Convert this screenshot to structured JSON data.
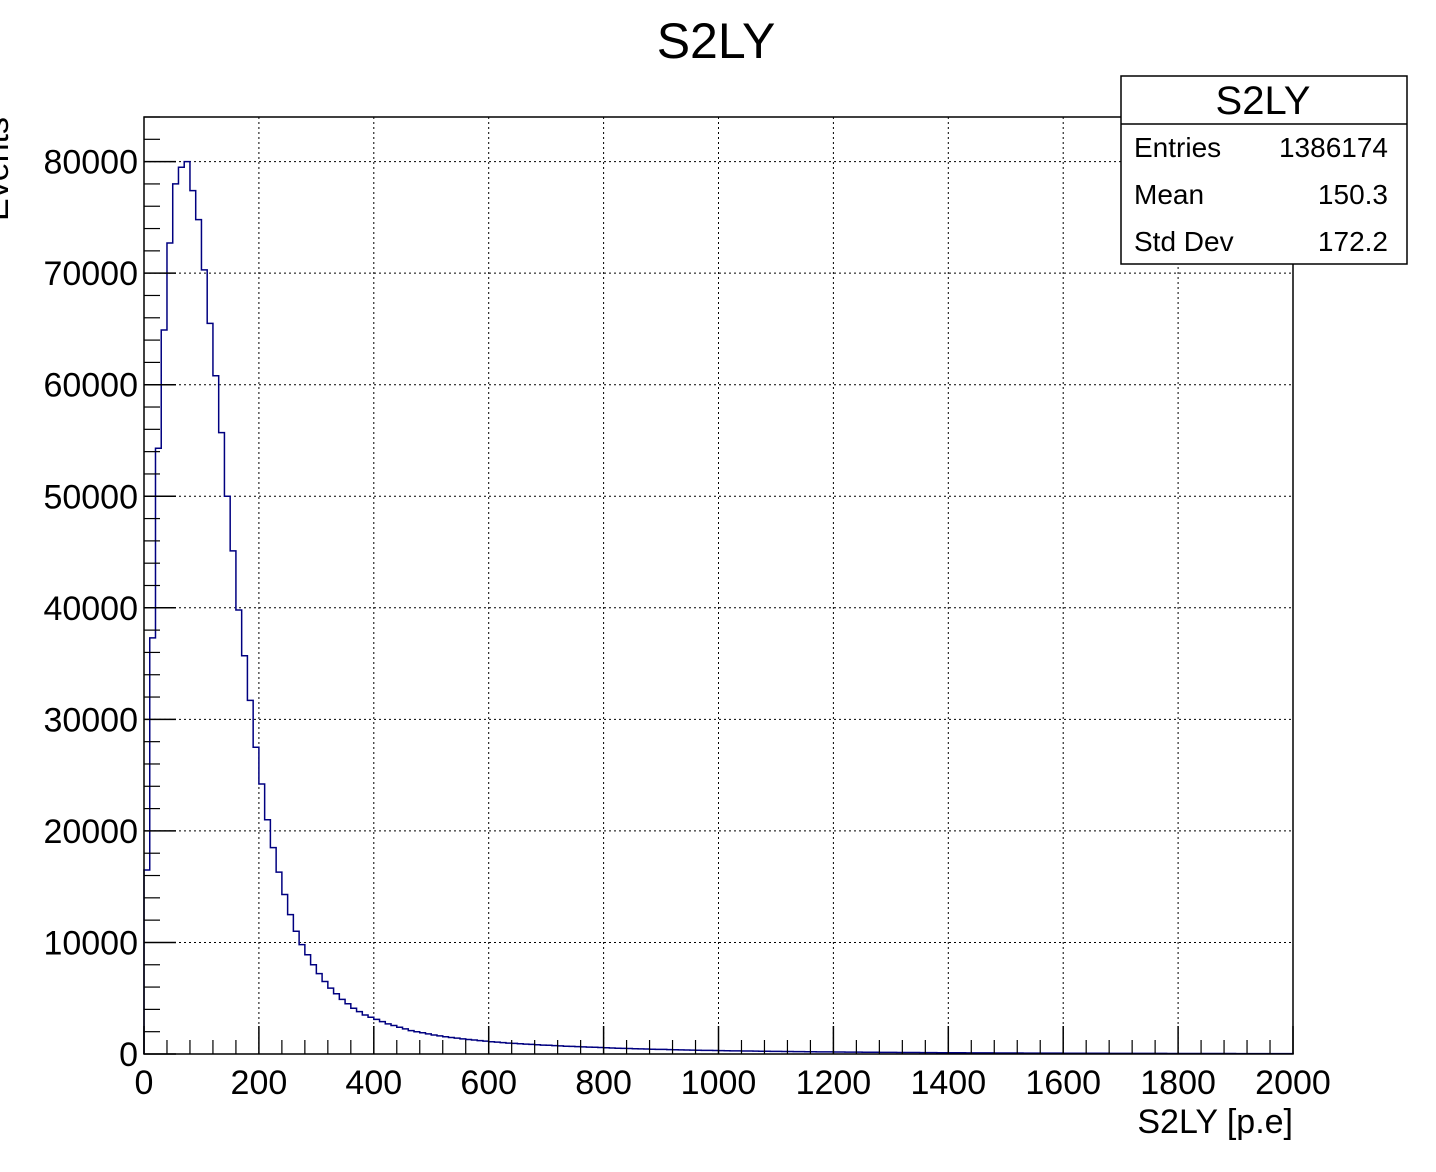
{
  "chart_data": {
    "type": "bar",
    "title": "S2LY",
    "xlabel": "S2LY [p.e]",
    "ylabel": "Events",
    "xlim": [
      0,
      2000
    ],
    "ylim": [
      0,
      84000
    ],
    "grid": true,
    "x_ticks": [
      "0",
      "200",
      "400",
      "600",
      "800",
      "1000",
      "1200",
      "1400",
      "1600",
      "1800",
      "2000"
    ],
    "y_ticks": [
      "0",
      "10000",
      "20000",
      "30000",
      "40000",
      "50000",
      "60000",
      "70000",
      "80000"
    ],
    "line_color": "#000080",
    "bin_width": 10,
    "bin_start": 0,
    "values": [
      16500,
      37300,
      54300,
      64900,
      72700,
      78000,
      79500,
      80000,
      77400,
      74800,
      70300,
      65500,
      60800,
      55700,
      50000,
      45100,
      39800,
      35700,
      31700,
      27500,
      24200,
      21000,
      18500,
      16300,
      14300,
      12500,
      11000,
      9800,
      8900,
      8000,
      7200,
      6500,
      5900,
      5400,
      4900,
      4500,
      4100,
      3800,
      3500,
      3300,
      3100,
      2900,
      2700,
      2550,
      2400,
      2250,
      2100,
      2000,
      1900,
      1800,
      1700,
      1620,
      1550,
      1480,
      1420,
      1360,
      1300,
      1250,
      1200,
      1150,
      1100,
      1060,
      1020,
      980,
      950,
      920,
      890,
      860,
      830,
      800,
      780,
      750,
      730,
      700,
      680,
      660,
      640,
      620,
      600,
      580,
      560,
      540,
      520,
      500,
      490,
      475,
      460,
      445,
      430,
      420,
      410,
      395,
      385,
      370,
      360,
      350,
      340,
      330,
      320,
      310,
      300,
      295,
      285,
      280,
      270,
      265,
      255,
      250,
      245,
      240,
      230,
      225,
      220,
      215,
      210,
      205,
      200,
      195,
      190,
      185,
      180,
      175,
      172,
      168,
      164,
      160,
      156,
      152,
      148,
      145,
      142,
      138,
      135,
      132,
      129,
      126,
      123,
      120,
      117,
      115,
      112,
      110,
      107,
      105,
      103,
      100,
      98,
      96,
      94,
      92,
      90,
      88,
      86,
      84,
      82,
      80,
      78,
      76,
      75,
      73,
      72,
      70,
      69,
      67,
      66,
      64,
      63,
      62,
      60,
      59,
      58,
      57,
      56,
      55,
      54,
      53,
      52,
      51,
      50,
      49,
      48,
      47,
      46,
      45,
      44,
      43,
      42,
      41,
      40,
      40,
      39,
      38,
      37,
      37,
      36,
      35,
      35,
      34,
      33,
      33
    ]
  },
  "stats_box": {
    "title": "S2LY",
    "entries_label": "Entries",
    "entries_value": "1386174",
    "mean_label": "Mean",
    "mean_value": "150.3",
    "stddev_label": "Std Dev",
    "stddev_value": "172.2"
  }
}
